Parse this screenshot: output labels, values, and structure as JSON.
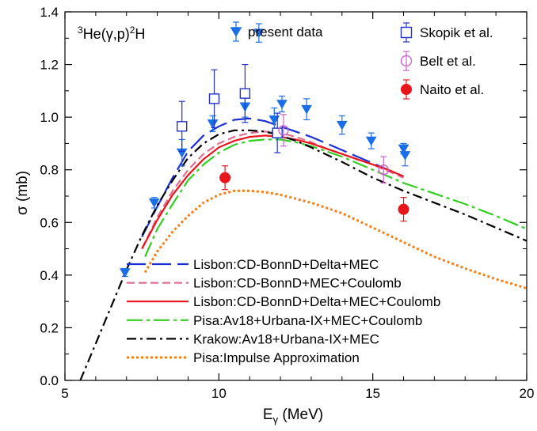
{
  "chart_data": {
    "type": "line",
    "title": "",
    "annotation": {
      "pre": "3",
      "mid": "He(γ,p)",
      "post_sup": "2",
      "post": "H"
    },
    "xlabel": {
      "main": "E",
      "sub": "γ",
      "unit": " (MeV)"
    },
    "ylabel": "σ (mb)",
    "xlim": [
      5,
      20
    ],
    "ylim": [
      0,
      1.4
    ],
    "xticks": [
      "5",
      "10",
      "15",
      "20"
    ],
    "yticks": [
      "0.0",
      "0.2",
      "0.4",
      "0.6",
      "0.8",
      "1.0",
      "1.2",
      "1.4"
    ],
    "colors": {
      "present": "#1a6fe8",
      "skopik": "#2233cc",
      "belt": "#cc66cc",
      "naito": "#e8151b",
      "lisbon_delta": "#1a2fd6",
      "lisbon_coul": "#e07090",
      "lisbon_full": "#e8151b",
      "pisa": "#33cc22",
      "krakow": "#000000",
      "pisa_ia": "#f57f17"
    },
    "data_series": [
      {
        "name": "present data",
        "marker": "triangle-down",
        "points": [
          {
            "x": 6.95,
            "y": 0.41,
            "err": 0.015
          },
          {
            "x": 7.9,
            "y": 0.675,
            "err": 0.02
          },
          {
            "x": 8.8,
            "y": 0.865,
            "err": 0.05
          },
          {
            "x": 9.8,
            "y": 0.975,
            "err": 0.03
          },
          {
            "x": 10.85,
            "y": 1.04,
            "err": 0.04
          },
          {
            "x": 11.3,
            "y": 1.32,
            "err": 0.035
          },
          {
            "x": 11.8,
            "y": 0.99,
            "err": 0.045
          },
          {
            "x": 12.05,
            "y": 1.05,
            "err": 0.03
          },
          {
            "x": 12.85,
            "y": 1.03,
            "err": 0.04
          },
          {
            "x": 14.0,
            "y": 0.97,
            "err": 0.035
          },
          {
            "x": 14.95,
            "y": 0.91,
            "err": 0.03
          },
          {
            "x": 16.05,
            "y": 0.855,
            "err": 0.04
          },
          {
            "x": 16.0,
            "y": 0.88,
            "err": 0.02
          }
        ]
      },
      {
        "name": "Skopik et al.",
        "marker": "square-open",
        "points": [
          {
            "x": 8.8,
            "y": 0.965,
            "err": 0.095
          },
          {
            "x": 9.85,
            "y": 1.07,
            "err": 0.11
          },
          {
            "x": 10.85,
            "y": 1.09,
            "err": 0.11
          },
          {
            "x": 11.9,
            "y": 0.94,
            "err": 0.075
          }
        ]
      },
      {
        "name": "Belt et al.",
        "marker": "circle-open",
        "points": [
          {
            "x": 12.1,
            "y": 0.95,
            "err": 0.06
          },
          {
            "x": 15.35,
            "y": 0.8,
            "err": 0.05
          }
        ]
      },
      {
        "name": "Naito et al.",
        "marker": "circle-filled",
        "points": [
          {
            "x": 10.2,
            "y": 0.77,
            "err": 0.045
          },
          {
            "x": 16.0,
            "y": 0.65,
            "err": 0.045
          }
        ]
      }
    ],
    "curves": [
      {
        "name": "Lisbon:CD-BonnD+Delta+MEC",
        "key": "lisbon_delta",
        "dash": "24,8",
        "x": [
          7.5,
          8.0,
          8.5,
          9.0,
          9.5,
          10.0,
          10.5,
          11.0,
          11.5,
          12.0,
          12.5,
          13.0,
          13.5,
          14.0,
          14.5,
          15.0,
          15.5,
          16.0
        ],
        "y": [
          0.545,
          0.66,
          0.77,
          0.87,
          0.93,
          0.965,
          0.99,
          0.995,
          0.985,
          0.965,
          0.945,
          0.925,
          0.9,
          0.875,
          0.85,
          0.825,
          0.8,
          0.775
        ]
      },
      {
        "name": "Lisbon:CD-BonnD+MEC+Coulomb",
        "key": "lisbon_coul",
        "dash": "10,5",
        "x": [
          7.5,
          8.0,
          8.5,
          9.0,
          9.5,
          10.0,
          10.5,
          11.0,
          11.5,
          12.0,
          12.5,
          13.0,
          13.5,
          14.0,
          14.5,
          15.0,
          15.5,
          16.0
        ],
        "y": [
          0.5,
          0.62,
          0.72,
          0.8,
          0.86,
          0.9,
          0.925,
          0.94,
          0.945,
          0.94,
          0.925,
          0.905,
          0.88,
          0.86,
          0.84,
          0.82,
          0.795,
          0.77
        ]
      },
      {
        "name": "Lisbon:CD-BonnD+Delta+MEC+Coulomb",
        "key": "lisbon_full",
        "dash": "",
        "x": [
          7.5,
          8.0,
          8.5,
          9.0,
          9.5,
          10.0,
          10.5,
          11.0,
          11.5,
          12.0,
          12.5,
          13.0,
          13.5,
          14.0,
          14.5,
          15.0,
          15.5,
          16.0
        ],
        "y": [
          0.5,
          0.61,
          0.705,
          0.78,
          0.84,
          0.885,
          0.91,
          0.925,
          0.93,
          0.925,
          0.915,
          0.9,
          0.88,
          0.86,
          0.84,
          0.82,
          0.8,
          0.775
        ]
      },
      {
        "name": "Pisa:Av18+Urbana-IX+MEC+Coulomb",
        "key": "pisa",
        "dash": "20,5,4,5",
        "x": [
          7.6,
          8.0,
          8.5,
          9.0,
          9.5,
          10.0,
          10.5,
          11.0,
          11.5,
          12.0,
          12.5,
          13.0,
          14.0,
          15.0,
          16.0,
          17.0,
          18.0,
          19.0,
          20.0
        ],
        "y": [
          0.47,
          0.575,
          0.67,
          0.76,
          0.82,
          0.865,
          0.895,
          0.91,
          0.915,
          0.915,
          0.905,
          0.89,
          0.85,
          0.8,
          0.75,
          0.71,
          0.67,
          0.625,
          0.575
        ]
      },
      {
        "name": "Krakow:Av18+Urbana-IX+MEC",
        "key": "krakow",
        "dash": "12,5,3,5",
        "x": [
          5.5,
          6.0,
          6.5,
          7.0,
          7.5,
          8.0,
          8.5,
          9.0,
          9.5,
          10.0,
          10.5,
          11.0,
          11.5,
          12.0,
          12.5,
          13.0,
          14.0,
          15.0,
          16.0,
          17.0,
          18.0,
          19.0,
          20.0
        ],
        "y": [
          0.0,
          0.14,
          0.28,
          0.42,
          0.55,
          0.665,
          0.76,
          0.845,
          0.9,
          0.935,
          0.95,
          0.95,
          0.945,
          0.93,
          0.91,
          0.885,
          0.83,
          0.77,
          0.72,
          0.675,
          0.63,
          0.58,
          0.53
        ]
      },
      {
        "name": "Pisa:Impulse Approximation",
        "key": "pisa_ia",
        "dash": "3,3",
        "x": [
          7.6,
          8.0,
          8.5,
          9.0,
          9.5,
          10.0,
          10.5,
          11.0,
          11.5,
          12.0,
          13.0,
          14.0,
          15.0,
          16.0,
          17.0,
          18.0,
          19.0,
          20.0
        ],
        "y": [
          0.41,
          0.49,
          0.565,
          0.625,
          0.675,
          0.705,
          0.72,
          0.72,
          0.715,
          0.705,
          0.675,
          0.635,
          0.58,
          0.525,
          0.47,
          0.425,
          0.385,
          0.35
        ]
      }
    ],
    "legend_position": "bottom-left"
  }
}
